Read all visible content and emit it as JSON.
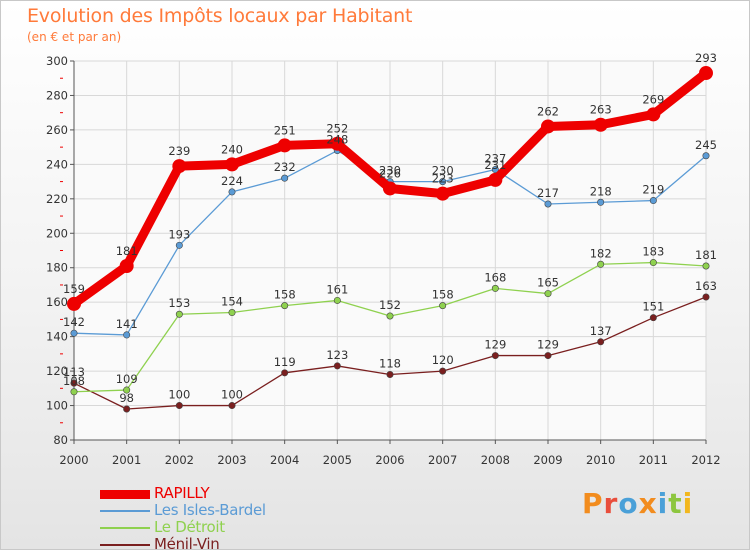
{
  "title": "Evolution des Impôts locaux par Habitant",
  "subtitle": "(en € et par an)",
  "logo": {
    "text": "Proxiti",
    "letters": [
      "P",
      "r",
      "o",
      "x",
      "i",
      "t",
      "i"
    ],
    "letter_colors": [
      "#f28c1e",
      "#e94e3c",
      "#4aa0d8",
      "#f28c1e",
      "#4aa0d8",
      "#8dc63f",
      "#f2b71e"
    ]
  },
  "chart_data": {
    "type": "line",
    "title": "Evolution des Impôts locaux par Habitant",
    "subtitle": "(en € et par an)",
    "xlabel": "",
    "ylabel": "",
    "x": [
      "2000",
      "2001",
      "2002",
      "2003",
      "2004",
      "2005",
      "2006",
      "2007",
      "2008",
      "2009",
      "2010",
      "2011",
      "2012"
    ],
    "ylim": [
      80,
      300
    ],
    "yticks": [
      80,
      100,
      120,
      140,
      160,
      180,
      200,
      220,
      240,
      260,
      280,
      300
    ],
    "grid": true,
    "legend_position": "bottom-left",
    "series": [
      {
        "name": "RAPILLY",
        "color": "#ee0000",
        "values": [
          159,
          181,
          239,
          240,
          251,
          252,
          226,
          223,
          231,
          262,
          263,
          269,
          293
        ],
        "labels": [
          "159",
          "181",
          "239",
          "240",
          "251",
          "252",
          "226",
          "223",
          "231",
          "262",
          "263",
          "269",
          "293"
        ]
      },
      {
        "name": "Les Isles-Bardel",
        "color": "#5b9bd5",
        "values": [
          142,
          141,
          193,
          224,
          232,
          248,
          230,
          230,
          237,
          217,
          218,
          219,
          245
        ],
        "labels": [
          "142",
          "141",
          "193",
          "224",
          "232",
          "248",
          "230",
          "230",
          "237",
          "217",
          "218",
          "219",
          "245"
        ]
      },
      {
        "name": "Le Détroit",
        "color": "#8fd14f",
        "values": [
          108,
          109,
          153,
          154,
          158,
          161,
          152,
          158,
          168,
          165,
          182,
          183,
          181
        ],
        "labels": [
          "108",
          "109",
          "153",
          "154",
          "158",
          "161",
          "152",
          "158",
          "168",
          "165",
          "182",
          "183",
          "181"
        ]
      },
      {
        "name": "Ménil-Vin",
        "color": "#7a1f1f",
        "values": [
          113,
          98,
          100,
          100,
          119,
          123,
          118,
          120,
          129,
          129,
          137,
          151,
          163
        ],
        "labels": [
          "113",
          "98",
          "100",
          "100",
          "119",
          "123",
          "118",
          "120",
          "129",
          "129",
          "137",
          "151",
          "163"
        ]
      }
    ]
  }
}
